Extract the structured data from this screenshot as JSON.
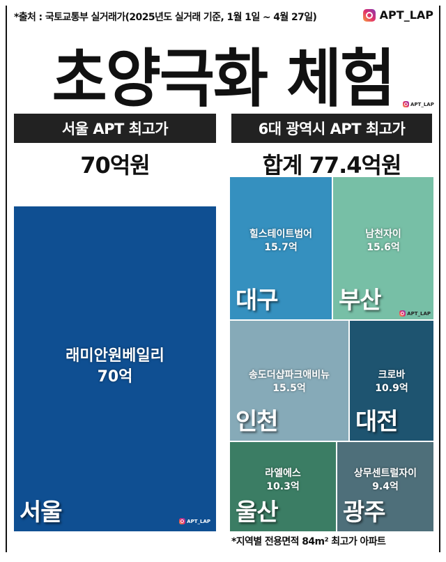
{
  "source_note": "*출처 : 국토교통부 실거래가(2025년도 실거래 기준, 1월 1일 ~ 4월 27일)",
  "handle": "APT_LAP",
  "title": "초양극화 체험",
  "left": {
    "header": "서울 APT 최고가",
    "total": "70억원"
  },
  "right": {
    "header": "6대 광역시 APT 최고가",
    "total": "합계 77.4억원"
  },
  "footnote": "*지역별 전용면적 84m² 최고가 아파트",
  "chart_data": {
    "type": "treemap",
    "unit": "억",
    "items": [
      {
        "region": "서울",
        "apartment": "래미안원베일리",
        "value": 70,
        "label": "70억",
        "color": "#0f4f92"
      },
      {
        "region": "대구",
        "apartment": "힐스테이트범어",
        "value": 15.7,
        "label": "15.7억",
        "color": "#3590bf"
      },
      {
        "region": "부산",
        "apartment": "남천자이",
        "value": 15.6,
        "label": "15.6억",
        "color": "#77bfa6"
      },
      {
        "region": "인천",
        "apartment": "송도더샵파크애비뉴",
        "value": 15.5,
        "label": "15.5억",
        "color": "#86aab8"
      },
      {
        "region": "대전",
        "apartment": "크로바",
        "value": 10.9,
        "label": "10.9억",
        "color": "#1e5470"
      },
      {
        "region": "울산",
        "apartment": "라엘에스",
        "value": 10.3,
        "label": "10.3억",
        "color": "#3b7d64"
      },
      {
        "region": "광주",
        "apartment": "상무센트럴자이",
        "value": 9.4,
        "label": "9.4억",
        "color": "#4e6f7a"
      }
    ]
  }
}
